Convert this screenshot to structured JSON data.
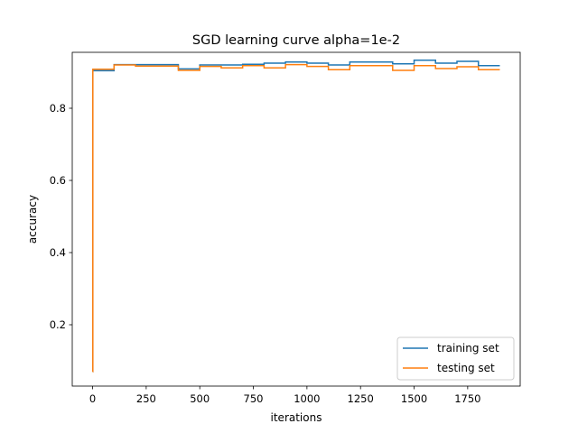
{
  "chart_data": {
    "type": "line",
    "title": "SGD learning curve alpha=1e-2",
    "xlabel": "iterations",
    "ylabel": "accuracy",
    "xlim": [
      -95,
      1995
    ],
    "ylim": [
      0.03,
      0.955
    ],
    "xticks": [
      0,
      250,
      500,
      750,
      1000,
      1250,
      1500,
      1750
    ],
    "yticks": [
      0.2,
      0.4,
      0.6,
      0.8
    ],
    "xtick_labels": [
      "0",
      "250",
      "500",
      "750",
      "1000",
      "1250",
      "1500",
      "1750"
    ],
    "ytick_labels": [
      "0.2",
      "0.4",
      "0.6",
      "0.8"
    ],
    "grid": false,
    "legend_position": "lower-right",
    "step": "post",
    "x": [
      0,
      1,
      100,
      200,
      300,
      400,
      500,
      600,
      700,
      800,
      900,
      1000,
      1100,
      1200,
      1300,
      1400,
      1500,
      1600,
      1700,
      1800,
      1900
    ],
    "series": [
      {
        "name": "training set",
        "color": "#1f77b4",
        "values": [
          0.07,
          0.904,
          0.921,
          0.921,
          0.921,
          0.909,
          0.92,
          0.92,
          0.922,
          0.925,
          0.928,
          0.925,
          0.92,
          0.928,
          0.928,
          0.923,
          0.933,
          0.925,
          0.93,
          0.918,
          0.918
        ]
      },
      {
        "name": "testing set",
        "color": "#ff7f0e",
        "values": [
          0.07,
          0.908,
          0.92,
          0.917,
          0.917,
          0.905,
          0.916,
          0.912,
          0.918,
          0.912,
          0.921,
          0.916,
          0.907,
          0.918,
          0.918,
          0.905,
          0.918,
          0.91,
          0.915,
          0.907,
          0.907
        ]
      }
    ]
  }
}
